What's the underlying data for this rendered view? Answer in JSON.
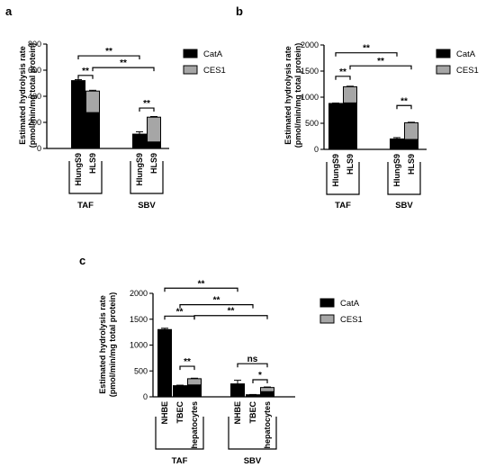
{
  "colors": {
    "catA": "#000000",
    "ces1": "#a6a6a6"
  },
  "chart_data": [
    {
      "panel": "a",
      "type": "bar",
      "stacked": true,
      "ylabel": "Estimated hydrolysis rate\n(pmol/min/mg total protein)",
      "ylim": [
        0,
        800
      ],
      "yticks": [
        0,
        200,
        400,
        600,
        800
      ],
      "categories": [
        "HlungS9",
        "HLS9",
        "HlungS9",
        "HLS9"
      ],
      "groups": [
        {
          "label": "TAF",
          "categories": [
            0,
            1
          ]
        },
        {
          "label": "SBV",
          "categories": [
            2,
            3
          ]
        }
      ],
      "series": [
        {
          "name": "CatA",
          "values": [
            520,
            275,
            110,
            50
          ],
          "error": [
            8,
            5,
            18,
            8
          ]
        },
        {
          "name": "CES1",
          "values": [
            0,
            165,
            0,
            190
          ],
          "error": [
            0,
            6,
            0,
            5
          ]
        }
      ],
      "legend": "top-right",
      "significance": [
        {
          "from": 0,
          "to": 2,
          "y": 710,
          "label": "**"
        },
        {
          "from": 1,
          "to": 3,
          "y": 620,
          "label": "**"
        },
        {
          "from": 0,
          "to": 1,
          "y": 560,
          "label": "**"
        },
        {
          "from": 2,
          "to": 3,
          "y": 310,
          "label": "**"
        }
      ]
    },
    {
      "panel": "b",
      "type": "bar",
      "stacked": true,
      "ylabel": "Estimated hydrolysis rate\n(pmol/min/mg total protein)",
      "ylim": [
        0,
        2000
      ],
      "yticks": [
        0,
        500,
        1000,
        1500,
        2000
      ],
      "categories": [
        "HlungS9",
        "HLS9",
        "HlungS9",
        "HLS9"
      ],
      "groups": [
        {
          "label": "TAF",
          "categories": [
            0,
            1
          ]
        },
        {
          "label": "SBV",
          "categories": [
            2,
            3
          ]
        }
      ],
      "series": [
        {
          "name": "CatA",
          "values": [
            880,
            890,
            200,
            190
          ],
          "error": [
            8,
            12,
            25,
            30
          ]
        },
        {
          "name": "CES1",
          "values": [
            0,
            310,
            0,
            320
          ],
          "error": [
            0,
            10,
            0,
            10
          ]
        }
      ],
      "legend": "top-right",
      "significance": [
        {
          "from": 0,
          "to": 2,
          "y": 1850,
          "label": "**"
        },
        {
          "from": 1,
          "to": 3,
          "y": 1600,
          "label": "**"
        },
        {
          "from": 0,
          "to": 1,
          "y": 1400,
          "label": "**"
        },
        {
          "from": 2,
          "to": 3,
          "y": 840,
          "label": "**"
        }
      ]
    },
    {
      "panel": "c",
      "type": "bar",
      "stacked": true,
      "ylabel": "Estimated hydrolysis rate\n(pmol/min/mg total protein)",
      "ylim": [
        0,
        2000
      ],
      "yticks": [
        0,
        500,
        1000,
        1500,
        2000
      ],
      "categories": [
        "NHBE",
        "TBEC",
        "hepatocytes",
        "NHBE",
        "TBEC",
        "hepatocytes"
      ],
      "groups": [
        {
          "label": "TAF",
          "categories": [
            0,
            1,
            2
          ]
        },
        {
          "label": "SBV",
          "categories": [
            3,
            4,
            5
          ]
        }
      ],
      "series": [
        {
          "name": "CatA",
          "values": [
            1300,
            215,
            230,
            250,
            25,
            100
          ],
          "error": [
            25,
            10,
            15,
            70,
            12,
            20
          ]
        },
        {
          "name": "CES1",
          "values": [
            0,
            0,
            120,
            0,
            15,
            80
          ],
          "error": [
            0,
            0,
            10,
            0,
            5,
            10
          ]
        }
      ],
      "legend": "top-right",
      "significance": [
        {
          "from": 0,
          "to": 3,
          "y": 2100,
          "label": "**"
        },
        {
          "from": 1,
          "to": 4,
          "y": 1780,
          "label": "**"
        },
        {
          "from": 2,
          "to": 5,
          "y": 1570,
          "label": "**"
        },
        {
          "from": 0,
          "to": 2,
          "y": 1560,
          "label": "**"
        },
        {
          "from": 1,
          "to": 2,
          "y": 590,
          "label": "**"
        },
        {
          "from": 3,
          "to": 5,
          "y": 640,
          "label": "ns"
        },
        {
          "from": 4,
          "to": 5,
          "y": 330,
          "label": "*"
        }
      ]
    }
  ]
}
